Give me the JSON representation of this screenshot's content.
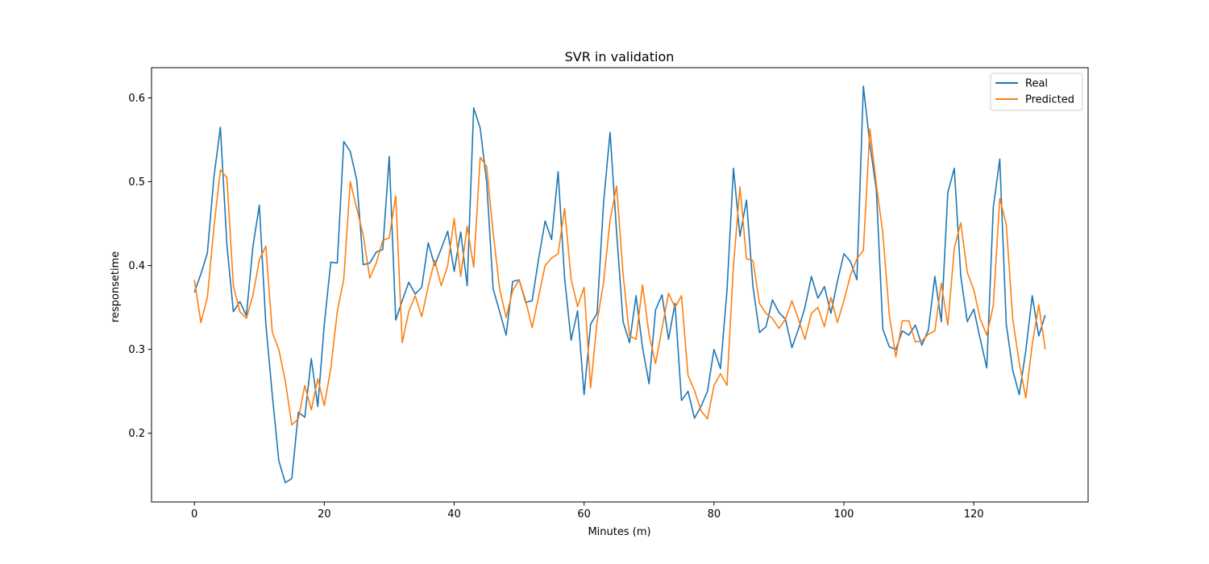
{
  "chart_data": {
    "type": "line",
    "title": "SVR in validation",
    "xlabel": "Minutes (m)",
    "ylabel": "responsetime",
    "xlim": [
      -6.6,
      137.6
    ],
    "ylim": [
      0.118,
      0.636
    ],
    "xticks": [
      0,
      20,
      40,
      60,
      80,
      100,
      120
    ],
    "yticks": [
      0.2,
      0.3,
      0.4,
      0.5,
      0.6
    ],
    "grid": false,
    "legend": "upper right",
    "series": [
      {
        "name": "Real",
        "color": "#1f77b4",
        "values": [
          0.368,
          0.39,
          0.415,
          0.505,
          0.565,
          0.425,
          0.345,
          0.357,
          0.34,
          0.422,
          0.472,
          0.33,
          0.245,
          0.167,
          0.141,
          0.146,
          0.225,
          0.219,
          0.289,
          0.232,
          0.33,
          0.404,
          0.403,
          0.548,
          0.536,
          0.502,
          0.401,
          0.403,
          0.416,
          0.419,
          0.53,
          0.335,
          0.358,
          0.38,
          0.366,
          0.374,
          0.427,
          0.4,
          0.42,
          0.441,
          0.393,
          0.44,
          0.376,
          0.588,
          0.564,
          0.5,
          0.372,
          0.345,
          0.317,
          0.381,
          0.383,
          0.356,
          0.358,
          0.408,
          0.453,
          0.431,
          0.512,
          0.385,
          0.311,
          0.346,
          0.246,
          0.33,
          0.343,
          0.475,
          0.559,
          0.44,
          0.333,
          0.308,
          0.364,
          0.302,
          0.259,
          0.347,
          0.365,
          0.312,
          0.355,
          0.239,
          0.25,
          0.218,
          0.232,
          0.25,
          0.3,
          0.277,
          0.37,
          0.516,
          0.435,
          0.478,
          0.375,
          0.32,
          0.327,
          0.359,
          0.344,
          0.336,
          0.302,
          0.324,
          0.35,
          0.387,
          0.361,
          0.375,
          0.343,
          0.381,
          0.414,
          0.405,
          0.383,
          0.614,
          0.545,
          0.49,
          0.324,
          0.303,
          0.3,
          0.322,
          0.317,
          0.329,
          0.305,
          0.323,
          0.387,
          0.333,
          0.487,
          0.516,
          0.387,
          0.333,
          0.348,
          0.312,
          0.278,
          0.469,
          0.527,
          0.33,
          0.275,
          0.246,
          0.298,
          0.364,
          0.316,
          0.341
        ]
      },
      {
        "name": "Predicted",
        "color": "#ff7f0e",
        "values": [
          0.383,
          0.332,
          0.362,
          0.445,
          0.514,
          0.505,
          0.376,
          0.345,
          0.337,
          0.364,
          0.407,
          0.423,
          0.32,
          0.3,
          0.262,
          0.21,
          0.217,
          0.257,
          0.228,
          0.265,
          0.233,
          0.277,
          0.345,
          0.384,
          0.5,
          0.468,
          0.436,
          0.385,
          0.403,
          0.43,
          0.433,
          0.483,
          0.308,
          0.345,
          0.364,
          0.339,
          0.375,
          0.406,
          0.376,
          0.4,
          0.456,
          0.387,
          0.447,
          0.398,
          0.529,
          0.518,
          0.439,
          0.372,
          0.338,
          0.37,
          0.383,
          0.358,
          0.326,
          0.363,
          0.4,
          0.409,
          0.414,
          0.468,
          0.384,
          0.351,
          0.374,
          0.254,
          0.333,
          0.38,
          0.454,
          0.495,
          0.39,
          0.316,
          0.312,
          0.377,
          0.318,
          0.283,
          0.325,
          0.367,
          0.35,
          0.364,
          0.269,
          0.251,
          0.227,
          0.217,
          0.257,
          0.271,
          0.257,
          0.4,
          0.494,
          0.408,
          0.406,
          0.355,
          0.343,
          0.337,
          0.325,
          0.336,
          0.358,
          0.336,
          0.312,
          0.343,
          0.35,
          0.327,
          0.362,
          0.332,
          0.358,
          0.388,
          0.408,
          0.418,
          0.563,
          0.497,
          0.438,
          0.341,
          0.291,
          0.334,
          0.334,
          0.309,
          0.31,
          0.318,
          0.322,
          0.379,
          0.329,
          0.421,
          0.451,
          0.392,
          0.371,
          0.336,
          0.317,
          0.352,
          0.48,
          0.449,
          0.336,
          0.284,
          0.242,
          0.306,
          0.353,
          0.3
        ]
      }
    ]
  }
}
